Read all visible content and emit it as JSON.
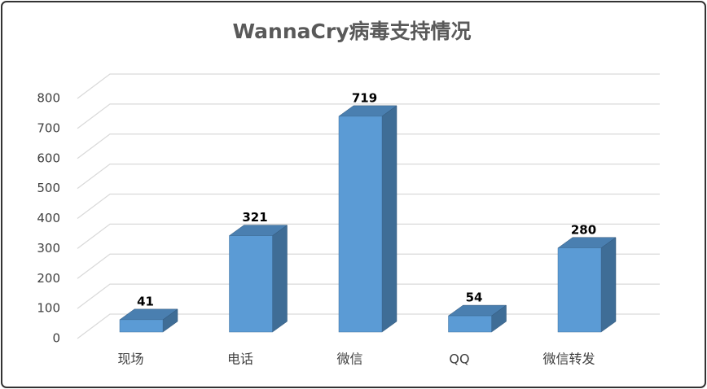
{
  "chart_data": {
    "type": "bar3d",
    "title": "WannaCry病毒支持情况",
    "categories": [
      "现场",
      "电话",
      "微信",
      "QQ",
      "微信转发"
    ],
    "values": [
      41,
      321,
      719,
      54,
      280
    ],
    "color": "#5b9bd5",
    "ylim": [
      0,
      800
    ],
    "yticks": [
      0,
      100,
      200,
      300,
      400,
      500,
      600,
      700,
      800
    ],
    "grid": true
  }
}
